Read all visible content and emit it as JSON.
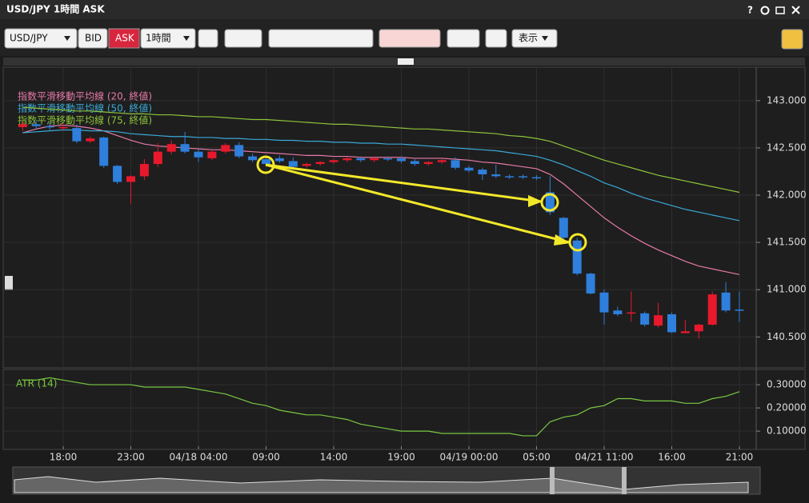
{
  "window": {
    "title": "USD/JPY 1時間 ASK",
    "help": "?"
  },
  "toolbar": {
    "symbol": "USD/JPY",
    "bid": "BID",
    "ask": "ASK",
    "period": "1時間",
    "display": "表示"
  },
  "chart_data": [
    {
      "type": "candlestick",
      "categories": [
        null,
        null,
        null,
        "18:00",
        null,
        null,
        null,
        null,
        "23:00",
        null,
        null,
        null,
        null,
        "04/18 04:00",
        null,
        null,
        null,
        null,
        "09:00",
        null,
        null,
        null,
        null,
        "14:00",
        null,
        null,
        null,
        null,
        "19:00",
        null,
        null,
        null,
        null,
        "04/19 00:00",
        null,
        null,
        null,
        null,
        "05:00",
        null,
        null,
        null,
        null,
        "04/21 11:00",
        null,
        null,
        null,
        null,
        "16:00",
        null,
        null,
        null,
        null,
        "21:00"
      ],
      "open": [
        142.72,
        142.75,
        142.73,
        142.72,
        142.71,
        142.57,
        142.61,
        142.31,
        142.14,
        142.2,
        142.33,
        142.46,
        142.54,
        142.46,
        142.39,
        142.46,
        142.53,
        142.41,
        142.38,
        142.39,
        142.36,
        142.31,
        142.33,
        142.35,
        142.37,
        142.39,
        142.37,
        142.39,
        142.39,
        142.36,
        142.33,
        142.35,
        142.37,
        142.29,
        142.27,
        142.22,
        142.2,
        142.2,
        142.19,
        142.03,
        141.76,
        141.52,
        141.17,
        140.97,
        140.78,
        140.76,
        140.75,
        140.62,
        140.74,
        140.54,
        140.56,
        140.63,
        140.97,
        140.79
      ],
      "high": [
        142.78,
        142.8,
        142.77,
        142.76,
        142.75,
        142.62,
        142.62,
        142.32,
        142.21,
        142.38,
        142.55,
        142.58,
        142.67,
        142.49,
        142.48,
        142.55,
        142.56,
        142.44,
        142.41,
        142.42,
        142.4,
        142.34,
        142.36,
        142.38,
        142.4,
        142.41,
        142.4,
        142.41,
        142.41,
        142.38,
        142.36,
        142.38,
        142.4,
        142.31,
        142.29,
        142.32,
        142.22,
        142.22,
        142.21,
        142.2,
        141.77,
        141.55,
        141.18,
        141.0,
        140.82,
        140.98,
        140.77,
        140.86,
        140.76,
        140.68,
        140.64,
        140.98,
        141.08,
        140.98
      ],
      "low": [
        142.68,
        142.7,
        142.69,
        142.69,
        142.55,
        142.55,
        142.29,
        142.12,
        141.91,
        142.16,
        142.3,
        142.43,
        142.44,
        142.35,
        142.37,
        142.44,
        142.39,
        142.35,
        142.31,
        142.34,
        142.28,
        142.29,
        142.31,
        142.33,
        142.35,
        142.35,
        142.35,
        142.36,
        142.34,
        142.31,
        142.31,
        142.33,
        142.27,
        142.24,
        142.16,
        142.18,
        142.17,
        142.17,
        142.16,
        141.79,
        141.52,
        141.15,
        140.95,
        140.63,
        140.72,
        140.66,
        140.61,
        140.6,
        140.54,
        140.54,
        140.48,
        140.62,
        140.76,
        140.66
      ],
      "close": [
        142.75,
        142.73,
        142.72,
        142.72,
        142.57,
        142.6,
        142.31,
        142.14,
        142.2,
        142.33,
        142.46,
        142.54,
        142.46,
        142.4,
        142.46,
        142.53,
        142.41,
        142.37,
        142.33,
        142.36,
        142.3,
        142.33,
        142.35,
        142.37,
        142.39,
        142.37,
        142.39,
        142.38,
        142.36,
        142.33,
        142.35,
        142.37,
        142.29,
        142.26,
        142.22,
        142.2,
        142.19,
        142.19,
        142.18,
        141.82,
        141.55,
        141.17,
        140.96,
        140.76,
        140.74,
        140.76,
        140.63,
        140.73,
        140.55,
        140.56,
        140.63,
        140.95,
        140.78,
        140.78
      ],
      "up_color": "#e8192c",
      "down_color": "#2f7fdc",
      "overlays": [
        {
          "name": "指数平滑移動平均線 (20, 終値)",
          "color": "#e87aa8",
          "values": [
            142.66,
            142.7,
            142.73,
            142.74,
            142.73,
            142.71,
            142.68,
            142.63,
            142.58,
            142.54,
            142.52,
            142.51,
            142.5,
            142.49,
            142.48,
            142.48,
            142.47,
            142.46,
            142.45,
            142.44,
            142.43,
            142.42,
            142.42,
            142.41,
            142.41,
            142.4,
            142.4,
            142.4,
            142.4,
            142.39,
            142.39,
            142.39,
            142.38,
            142.37,
            142.35,
            142.34,
            142.32,
            142.3,
            142.28,
            142.22,
            142.12,
            142.0,
            141.88,
            141.76,
            141.66,
            141.57,
            141.49,
            141.42,
            141.36,
            141.3,
            141.25,
            141.22,
            141.19,
            141.16
          ]
        },
        {
          "name": "指数平滑移動平均線 (50, 終値)",
          "color": "#3aa9d8",
          "values": [
            142.66,
            142.67,
            142.68,
            142.69,
            142.69,
            142.68,
            142.68,
            142.67,
            142.65,
            142.64,
            142.63,
            142.62,
            142.62,
            142.61,
            142.61,
            142.6,
            142.6,
            142.59,
            142.59,
            142.58,
            142.58,
            142.57,
            142.57,
            142.56,
            142.56,
            142.55,
            142.55,
            142.54,
            142.54,
            142.53,
            142.52,
            142.51,
            142.5,
            142.49,
            142.48,
            142.47,
            142.45,
            142.43,
            142.41,
            142.37,
            142.32,
            142.26,
            142.2,
            142.13,
            142.08,
            142.02,
            141.97,
            141.93,
            141.89,
            141.85,
            141.82,
            141.79,
            141.76,
            141.73
          ]
        },
        {
          "name": "指数平滑移動平均線 (75, 終値)",
          "color": "#8cc43a",
          "values": [
            142.93,
            142.92,
            142.91,
            142.9,
            142.89,
            142.89,
            142.88,
            142.87,
            142.86,
            142.86,
            142.85,
            142.85,
            142.84,
            142.83,
            142.83,
            142.82,
            142.81,
            142.8,
            142.8,
            142.79,
            142.78,
            142.77,
            142.76,
            142.75,
            142.75,
            142.74,
            142.73,
            142.72,
            142.71,
            142.7,
            142.7,
            142.69,
            142.68,
            142.67,
            142.66,
            142.65,
            142.63,
            142.62,
            142.6,
            142.57,
            142.52,
            142.47,
            142.42,
            142.37,
            142.33,
            142.29,
            142.25,
            142.21,
            142.18,
            142.15,
            142.12,
            142.09,
            142.06,
            142.03
          ]
        }
      ],
      "ylim": [
        140.19,
        143.32
      ],
      "yticks": [
        {
          "value": 140.5,
          "label": "140.500"
        },
        {
          "value": 141,
          "label": "141.000"
        },
        {
          "value": 141.5,
          "label": "141.500"
        },
        {
          "value": 142,
          "label": "142.000"
        },
        {
          "value": 142.5,
          "label": "142.500"
        },
        {
          "value": 143,
          "label": "143.000"
        }
      ],
      "grid": true
    },
    {
      "type": "line",
      "series": [
        {
          "name": "ATR (14)",
          "color": "#7ac943",
          "values": [
            0.32,
            0.32,
            0.33,
            0.32,
            0.31,
            0.3,
            0.3,
            0.3,
            0.3,
            0.29,
            0.29,
            0.29,
            0.29,
            0.28,
            0.27,
            0.26,
            0.24,
            0.22,
            0.21,
            0.19,
            0.18,
            0.17,
            0.17,
            0.16,
            0.15,
            0.13,
            0.12,
            0.11,
            0.1,
            0.1,
            0.1,
            0.09,
            0.09,
            0.09,
            0.09,
            0.09,
            0.09,
            0.08,
            0.08,
            0.14,
            0.16,
            0.17,
            0.2,
            0.21,
            0.24,
            0.24,
            0.23,
            0.23,
            0.23,
            0.22,
            0.22,
            0.24,
            0.25,
            0.27
          ]
        }
      ],
      "ylim": [
        0.028,
        0.352
      ],
      "yticks": [
        {
          "value": 0.1,
          "label": "0.10000"
        },
        {
          "value": 0.2,
          "label": "0.20000"
        },
        {
          "value": 0.3,
          "label": "0.30000"
        }
      ],
      "grid": true
    }
  ]
}
